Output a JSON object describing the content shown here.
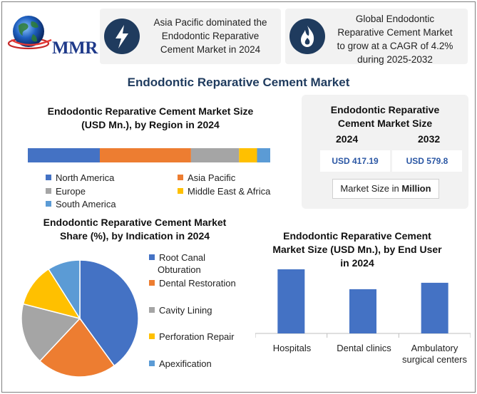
{
  "logo": {
    "text": "MMR"
  },
  "cards": [
    {
      "text_lines": [
        "Asia Pacific dominated the",
        "Endodontic Reparative",
        "Cement Market in 2024"
      ],
      "icon": "lightning-icon"
    },
    {
      "text_lines": [
        "Global Endodontic",
        "Reparative Cement Market",
        "to grow at a CAGR of 4.2%",
        "during 2025-2032"
      ],
      "icon": "flame-icon"
    }
  ],
  "main_title": "Endodontic Reparative Cement Market",
  "colors": {
    "blue": "#4472c4",
    "orange": "#ed7d31",
    "gray": "#a5a5a5",
    "yellow": "#ffc000",
    "lightblue": "#5b9bd5",
    "navy": "#1f3b5e"
  },
  "market_size": {
    "title_lines": [
      "Endodontic Reparative",
      "Cement Market Size"
    ],
    "year_start": "2024",
    "year_end": "2032",
    "value_start": "USD 417.19",
    "value_end": "USD 579.8",
    "unit_prefix": "Market Size in",
    "unit_bold": "Million"
  },
  "chart_data": [
    {
      "type": "bar",
      "orientation": "stacked-horizontal",
      "title": "Endodontic Reparative Cement Market Size (USD Mn.), by Region in 2024",
      "title_lines": [
        "Endodontic Reparative Cement Market Size",
        "(USD Mn.), by Region in 2024"
      ],
      "categories": [
        "North America",
        "Asia Pacific",
        "Europe",
        "Middle East & Africa",
        "South America"
      ],
      "values": [
        30,
        38,
        20,
        7.5,
        5.5
      ],
      "colors": [
        "#4472c4",
        "#ed7d31",
        "#a5a5a5",
        "#ffc000",
        "#5b9bd5"
      ],
      "legend_placement": "bottom"
    },
    {
      "type": "pie",
      "title": "Endodontic Reparative Cement Market Share (%), by Indication in 2024",
      "title_lines": [
        "Endodontic Reparative Cement Market",
        "Share (%), by Indication in 2024"
      ],
      "labels": [
        "Root Canal Obturation",
        "Dental Restoration",
        "Cavity Lining",
        "Perforation Repair",
        "Apexification"
      ],
      "legend_lines": [
        [
          "Root Canal",
          "Obturation"
        ],
        [
          "Dental Restoration"
        ],
        [
          "Cavity Lining"
        ],
        [
          "Perforation Repair"
        ],
        [
          "Apexification"
        ]
      ],
      "values": [
        40,
        22,
        17,
        12,
        9
      ],
      "colors": [
        "#4472c4",
        "#ed7d31",
        "#a5a5a5",
        "#ffc000",
        "#5b9bd5"
      ],
      "legend_placement": "right"
    },
    {
      "type": "bar",
      "title": "Endodontic Reparative Cement Market Size (USD Mn.), by End User in 2024",
      "title_lines": [
        "Endodontic Reparative Cement",
        "Market Size (USD Mn.), by End User",
        "in 2024"
      ],
      "categories": [
        "Hospitals",
        "Dental clinics",
        "Ambulatory surgical centers"
      ],
      "category_lines": [
        [
          "Hospitals"
        ],
        [
          "Dental clinics"
        ],
        [
          "Ambulatory",
          "surgical centers"
        ]
      ],
      "values": [
        100,
        69,
        79
      ],
      "ylim": [
        0,
        120
      ],
      "color": "#4472c4",
      "grid": false
    }
  ]
}
